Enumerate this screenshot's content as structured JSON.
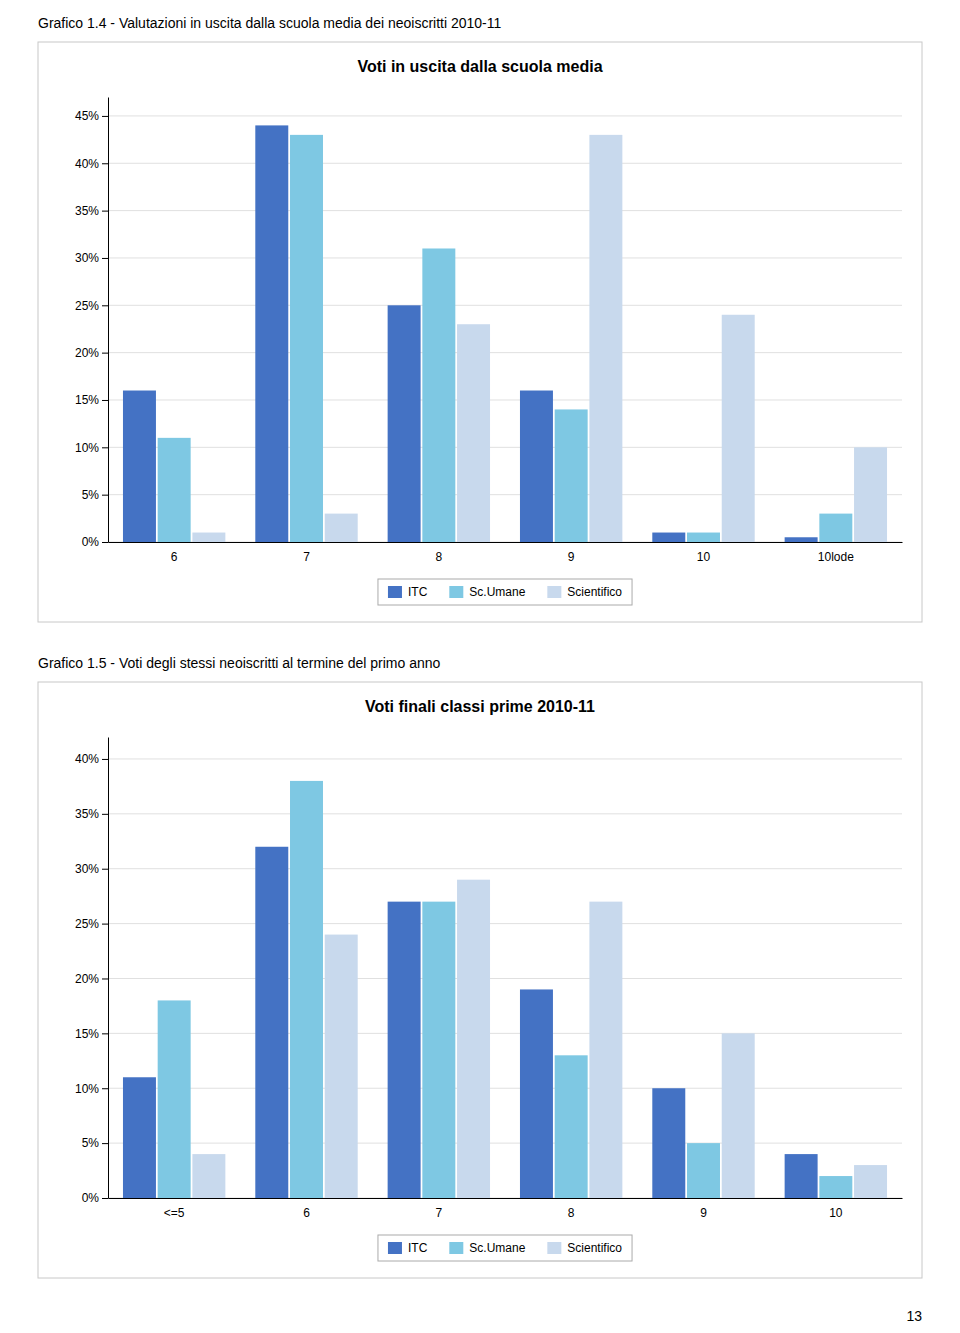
{
  "chart_data": [
    {
      "type": "bar",
      "title": "Grafico 1.4 - Valutazioni in uscita dalla scuola media dei neoiscritti 2010-11",
      "subtitle": "Voti in uscita dalla scuola media",
      "categories": [
        "6",
        "7",
        "8",
        "9",
        "10",
        "10lode"
      ],
      "series": [
        {
          "name": "ITC",
          "color": "#4472C4",
          "values": [
            0.16,
            0.44,
            0.25,
            0.16,
            0.01,
            0.005
          ]
        },
        {
          "name": "Sc.Umane",
          "color": "#7EC8E3",
          "values": [
            0.11,
            0.43,
            0.31,
            0.14,
            0.01,
            0.03
          ]
        },
        {
          "name": "Scientifico",
          "color": "#C8D9ED",
          "values": [
            0.01,
            0.03,
            0.23,
            0.43,
            0.24,
            0.1
          ]
        }
      ],
      "ylim": [
        0,
        0.47
      ],
      "yticks": [
        {
          "value": 0.0,
          "label": "0%"
        },
        {
          "value": 0.05,
          "label": "5%"
        },
        {
          "value": 0.1,
          "label": "10%"
        },
        {
          "value": 0.15,
          "label": "15%"
        },
        {
          "value": 0.2,
          "label": "20%"
        },
        {
          "value": 0.25,
          "label": "25%"
        },
        {
          "value": 0.3,
          "label": "30%"
        },
        {
          "value": 0.35,
          "label": "35%"
        },
        {
          "value": 0.4,
          "label": "40%"
        },
        {
          "value": 0.45,
          "label": "45%"
        }
      ],
      "grid": true,
      "legend": "bottom"
    },
    {
      "type": "bar",
      "title": "Grafico 1.5 -  Voti degli stessi neoiscritti al termine del primo anno",
      "subtitle": "Voti finali classi prime 2010-11",
      "categories": [
        "<=5",
        "6",
        "7",
        "8",
        "9",
        "10"
      ],
      "series": [
        {
          "name": "ITC",
          "color": "#4472C4",
          "values": [
            0.11,
            0.32,
            0.27,
            0.19,
            0.1,
            0.04
          ]
        },
        {
          "name": "Sc.Umane",
          "color": "#7EC8E3",
          "values": [
            0.18,
            0.38,
            0.27,
            0.13,
            0.05,
            0.02
          ]
        },
        {
          "name": "Scientifico",
          "color": "#C8D9ED",
          "values": [
            0.04,
            0.24,
            0.29,
            0.27,
            0.15,
            0.03
          ]
        }
      ],
      "ylim": [
        0,
        0.42
      ],
      "yticks": [
        {
          "value": 0.0,
          "label": "0%"
        },
        {
          "value": 0.05,
          "label": "5%"
        },
        {
          "value": 0.1,
          "label": "10%"
        },
        {
          "value": 0.15,
          "label": "15%"
        },
        {
          "value": 0.2,
          "label": "20%"
        },
        {
          "value": 0.25,
          "label": "25%"
        },
        {
          "value": 0.3,
          "label": "30%"
        },
        {
          "value": 0.35,
          "label": "35%"
        },
        {
          "value": 0.4,
          "label": "40%"
        }
      ],
      "grid": true,
      "legend": "bottom",
      "annotations": [
        "13"
      ]
    }
  ]
}
